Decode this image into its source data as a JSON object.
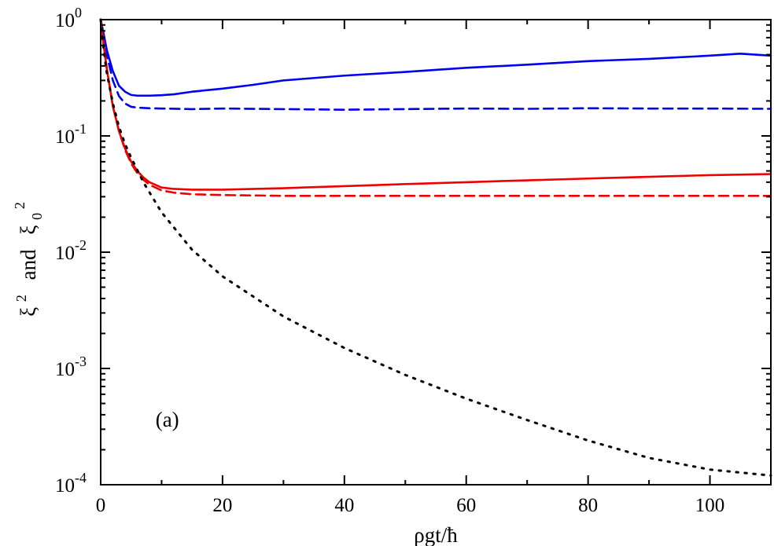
{
  "chart_data": {
    "type": "line",
    "title": "",
    "panel_label": "(a)",
    "xlabel": "ρgt/ħ",
    "ylabel": {
      "xi": "ξ",
      "sup": "2",
      "and": "and",
      "xi0": "ξ",
      "sub": "0",
      "sup0": "2"
    },
    "xlim": [
      0,
      110
    ],
    "ylim": [
      0.0001,
      1
    ],
    "yscale": "log",
    "grid": false,
    "xticks": [
      0,
      20,
      40,
      60,
      80,
      100
    ],
    "xtick_labels": [
      "0",
      "20",
      "40",
      "60",
      "80",
      "100"
    ],
    "yticks": [
      {
        "value": 1,
        "base": "10",
        "exp": "0"
      },
      {
        "value": 0.1,
        "base": "10",
        "exp": "-1"
      },
      {
        "value": 0.01,
        "base": "10",
        "exp": "-2"
      },
      {
        "value": 0.001,
        "base": "10",
        "exp": "-3"
      },
      {
        "value": 0.0001,
        "base": "10",
        "exp": "-4"
      }
    ],
    "series": [
      {
        "name": "blue-solid",
        "color": "#0000ee",
        "dash": "solid",
        "x": [
          0,
          0.5,
          1,
          2,
          3,
          4,
          5,
          6,
          8,
          10,
          12,
          15,
          20,
          25,
          30,
          40,
          50,
          60,
          70,
          80,
          90,
          100,
          105,
          110
        ],
        "y": [
          1.0,
          0.75,
          0.55,
          0.36,
          0.27,
          0.24,
          0.225,
          0.222,
          0.222,
          0.224,
          0.228,
          0.24,
          0.255,
          0.275,
          0.3,
          0.33,
          0.355,
          0.385,
          0.41,
          0.44,
          0.46,
          0.49,
          0.51,
          0.49
        ]
      },
      {
        "name": "blue-dashed",
        "color": "#0000ee",
        "dash": "dashed",
        "x": [
          0,
          0.5,
          1,
          2,
          3,
          4,
          5,
          6,
          8,
          10,
          15,
          20,
          30,
          40,
          50,
          60,
          70,
          80,
          90,
          100,
          110
        ],
        "y": [
          1.0,
          0.72,
          0.5,
          0.3,
          0.22,
          0.19,
          0.178,
          0.175,
          0.173,
          0.172,
          0.17,
          0.172,
          0.17,
          0.168,
          0.17,
          0.172,
          0.171,
          0.173,
          0.172,
          0.172,
          0.171
        ]
      },
      {
        "name": "red-solid",
        "color": "#ee0000",
        "dash": "solid",
        "x": [
          0,
          0.5,
          1,
          2,
          3,
          4,
          5,
          6,
          7,
          8,
          10,
          12,
          15,
          20,
          30,
          40,
          50,
          60,
          70,
          80,
          90,
          100,
          110
        ],
        "y": [
          1.0,
          0.6,
          0.38,
          0.18,
          0.11,
          0.078,
          0.06,
          0.05,
          0.044,
          0.04,
          0.036,
          0.035,
          0.0345,
          0.0345,
          0.0355,
          0.037,
          0.0385,
          0.04,
          0.0415,
          0.043,
          0.0445,
          0.046,
          0.047
        ]
      },
      {
        "name": "red-dashed",
        "color": "#ee0000",
        "dash": "dashed",
        "x": [
          0,
          0.5,
          1,
          2,
          3,
          4,
          5,
          6,
          7,
          8,
          10,
          12,
          15,
          20,
          30,
          40,
          60,
          80,
          100,
          110
        ],
        "y": [
          1.0,
          0.6,
          0.38,
          0.18,
          0.11,
          0.076,
          0.058,
          0.048,
          0.042,
          0.038,
          0.034,
          0.0325,
          0.0315,
          0.031,
          0.0305,
          0.0305,
          0.0305,
          0.0305,
          0.0305,
          0.0305
        ]
      },
      {
        "name": "black-dotted",
        "color": "#000000",
        "dash": "dotted",
        "x": [
          0,
          0.5,
          1,
          2,
          3,
          4,
          5,
          7,
          10,
          15,
          20,
          30,
          40,
          50,
          60,
          70,
          80,
          90,
          100,
          110
        ],
        "y": [
          1.0,
          0.55,
          0.35,
          0.19,
          0.12,
          0.085,
          0.065,
          0.04,
          0.022,
          0.0105,
          0.0062,
          0.0028,
          0.0015,
          0.00088,
          0.00055,
          0.00036,
          0.00024,
          0.00017,
          0.000135,
          0.00012
        ]
      }
    ]
  }
}
